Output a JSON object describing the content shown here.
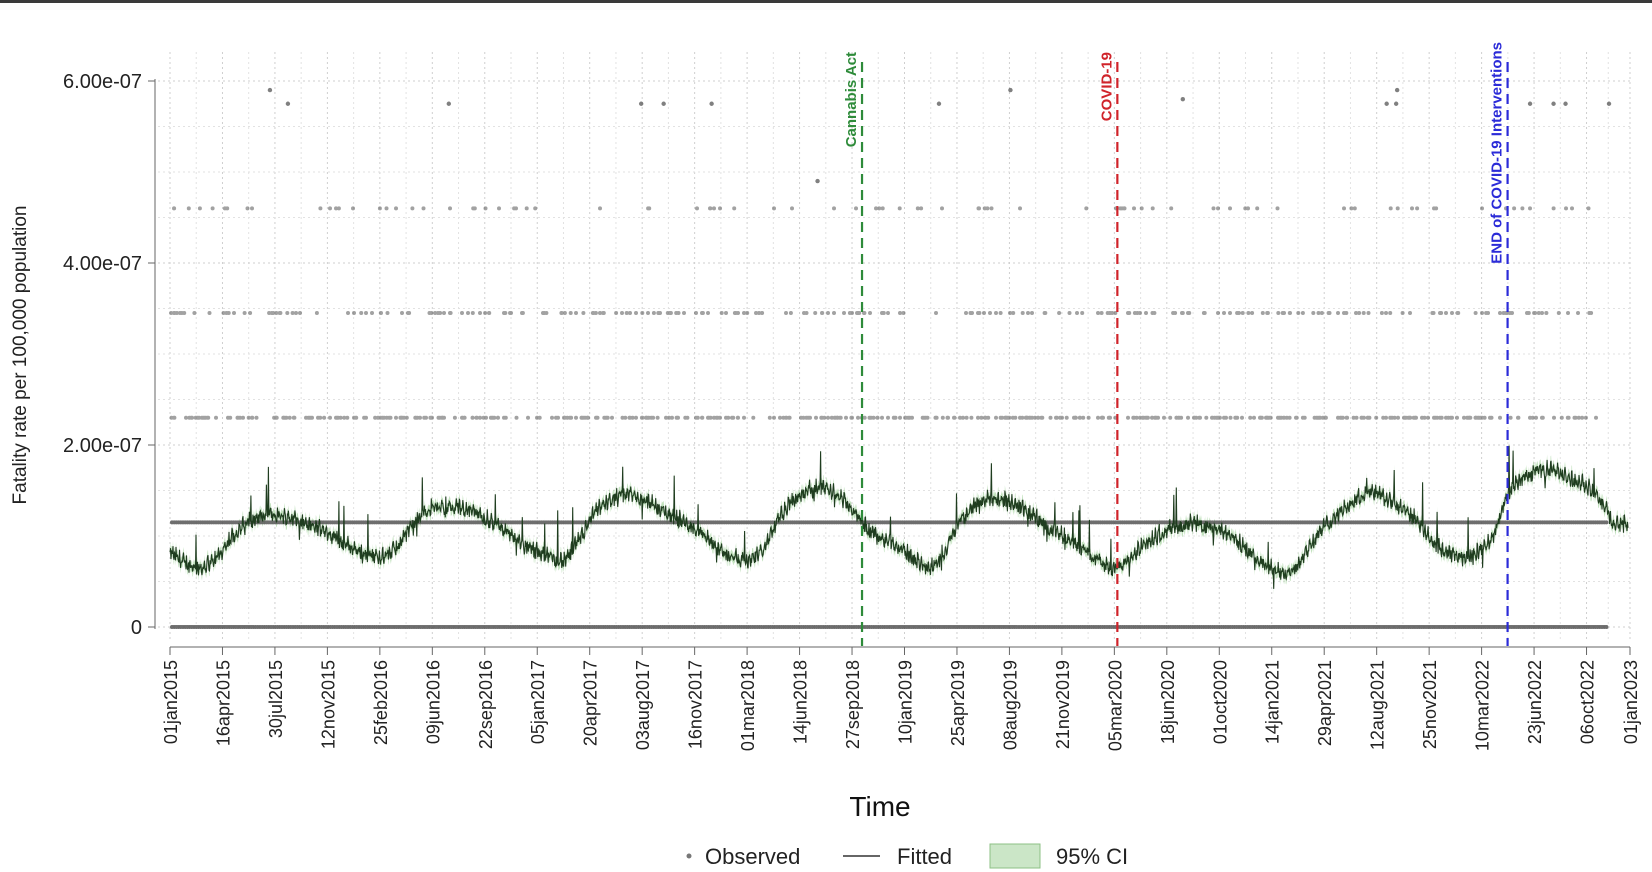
{
  "chart_data": {
    "type": "line",
    "title": "",
    "xlabel": "Time",
    "ylabel": "Fatality rate per 100,000 population",
    "xlim": [
      "2015-01-01",
      "2023-01-01"
    ],
    "ylim": [
      0,
      6e-07
    ],
    "y_ticks": [
      {
        "value": 0,
        "label": "0"
      },
      {
        "value": 2e-07,
        "label": "2.00e-07"
      },
      {
        "value": 4e-07,
        "label": "4.00e-07"
      },
      {
        "value": 6e-07,
        "label": "6.00e-07"
      }
    ],
    "x_ticks": [
      "01jan2015",
      "16apr2015",
      "30jul2015",
      "12nov2015",
      "25feb2016",
      "09jun2016",
      "22sep2016",
      "05jan2017",
      "20apr2017",
      "03aug2017",
      "16nov2017",
      "01mar2018",
      "14jun2018",
      "27sep2018",
      "10jan2019",
      "25apr2019",
      "08aug2019",
      "21nov2019",
      "05mar2020",
      "18jun2020",
      "01oct2020",
      "14jan2021",
      "29apr2021",
      "12aug2021",
      "25nov2021",
      "10mar2022",
      "23jun2022",
      "06oct2022",
      "01jan2023"
    ],
    "x_tick_dates": [
      "2015-01-01",
      "2015-04-16",
      "2015-07-30",
      "2015-11-12",
      "2016-02-25",
      "2016-06-09",
      "2016-09-22",
      "2017-01-05",
      "2017-04-20",
      "2017-08-03",
      "2017-11-16",
      "2018-03-01",
      "2018-06-14",
      "2018-09-27",
      "2019-01-10",
      "2019-04-25",
      "2019-08-08",
      "2019-11-21",
      "2020-03-05",
      "2020-06-18",
      "2020-10-01",
      "2021-01-14",
      "2021-04-29",
      "2021-08-12",
      "2021-11-25",
      "2022-03-10",
      "2022-06-23",
      "2022-10-06",
      "2023-01-01"
    ],
    "grid": true,
    "legend_position": "bottom",
    "legend": [
      {
        "key": "observed",
        "label": "Observed"
      },
      {
        "key": "fitted",
        "label": "Fitted"
      },
      {
        "key": "ci",
        "label": "95% CI"
      }
    ],
    "observed_levels": [
      0,
      1.15e-07,
      2.3e-07,
      3.45e-07,
      4.6e-07,
      5.75e-07
    ],
    "observed_outliers": [
      {
        "date": "2015-07-20",
        "y": 5.9e-07
      },
      {
        "date": "2015-08-25",
        "y": 5.75e-07
      },
      {
        "date": "2016-07-12",
        "y": 5.75e-07
      },
      {
        "date": "2017-08-01",
        "y": 5.75e-07
      },
      {
        "date": "2017-09-15",
        "y": 5.75e-07
      },
      {
        "date": "2017-12-20",
        "y": 5.75e-07
      },
      {
        "date": "2018-07-20",
        "y": 4.9e-07
      },
      {
        "date": "2019-03-20",
        "y": 5.75e-07
      },
      {
        "date": "2019-08-10",
        "y": 5.9e-07
      },
      {
        "date": "2020-07-20",
        "y": 5.8e-07
      },
      {
        "date": "2021-09-01",
        "y": 5.75e-07
      },
      {
        "date": "2021-09-20",
        "y": 5.75e-07
      },
      {
        "date": "2021-09-22",
        "y": 5.9e-07
      },
      {
        "date": "2022-06-15",
        "y": 5.75e-07
      },
      {
        "date": "2022-08-01",
        "y": 5.75e-07
      },
      {
        "date": "2022-08-25",
        "y": 5.75e-07
      },
      {
        "date": "2022-11-20",
        "y": 5.75e-07
      }
    ],
    "fitted_monthly": [
      {
        "date": "2015-01-01",
        "y": 8e-08
      },
      {
        "date": "2015-02-01",
        "y": 6.8e-08
      },
      {
        "date": "2015-03-01",
        "y": 6.2e-08
      },
      {
        "date": "2015-04-01",
        "y": 7.2e-08
      },
      {
        "date": "2015-05-01",
        "y": 9.5e-08
      },
      {
        "date": "2015-06-01",
        "y": 1.12e-07
      },
      {
        "date": "2015-07-01",
        "y": 1.2e-07
      },
      {
        "date": "2015-08-01",
        "y": 1.22e-07
      },
      {
        "date": "2015-09-01",
        "y": 1.18e-07
      },
      {
        "date": "2015-10-01",
        "y": 1.12e-07
      },
      {
        "date": "2015-11-01",
        "y": 1.05e-07
      },
      {
        "date": "2015-12-01",
        "y": 9.5e-08
      },
      {
        "date": "2016-01-01",
        "y": 8.5e-08
      },
      {
        "date": "2016-02-01",
        "y": 7.8e-08
      },
      {
        "date": "2016-03-01",
        "y": 7.5e-08
      },
      {
        "date": "2016-04-01",
        "y": 8.5e-08
      },
      {
        "date": "2016-05-01",
        "y": 1.12e-07
      },
      {
        "date": "2016-06-01",
        "y": 1.28e-07
      },
      {
        "date": "2016-07-01",
        "y": 1.32e-07
      },
      {
        "date": "2016-08-01",
        "y": 1.3e-07
      },
      {
        "date": "2016-09-01",
        "y": 1.25e-07
      },
      {
        "date": "2016-10-01",
        "y": 1.15e-07
      },
      {
        "date": "2016-11-01",
        "y": 1.05e-07
      },
      {
        "date": "2016-12-01",
        "y": 9.2e-08
      },
      {
        "date": "2017-01-01",
        "y": 8.2e-08
      },
      {
        "date": "2017-02-01",
        "y": 7.4e-08
      },
      {
        "date": "2017-03-01",
        "y": 7e-08
      },
      {
        "date": "2017-04-01",
        "y": 9.5e-08
      },
      {
        "date": "2017-05-01",
        "y": 1.25e-07
      },
      {
        "date": "2017-06-01",
        "y": 1.38e-07
      },
      {
        "date": "2017-07-01",
        "y": 1.45e-07
      },
      {
        "date": "2017-08-01",
        "y": 1.4e-07
      },
      {
        "date": "2017-09-01",
        "y": 1.3e-07
      },
      {
        "date": "2017-10-01",
        "y": 1.2e-07
      },
      {
        "date": "2017-11-01",
        "y": 1.12e-07
      },
      {
        "date": "2017-12-01",
        "y": 1e-07
      },
      {
        "date": "2018-01-01",
        "y": 8.5e-08
      },
      {
        "date": "2018-02-01",
        "y": 7.5e-08
      },
      {
        "date": "2018-03-01",
        "y": 7e-08
      },
      {
        "date": "2018-04-01",
        "y": 8.2e-08
      },
      {
        "date": "2018-05-01",
        "y": 1.15e-07
      },
      {
        "date": "2018-06-01",
        "y": 1.38e-07
      },
      {
        "date": "2018-07-01",
        "y": 1.5e-07
      },
      {
        "date": "2018-08-01",
        "y": 1.52e-07
      },
      {
        "date": "2018-09-01",
        "y": 1.42e-07
      },
      {
        "date": "2018-10-01",
        "y": 1.25e-07
      },
      {
        "date": "2018-11-01",
        "y": 1.05e-07
      },
      {
        "date": "2018-12-01",
        "y": 9.5e-08
      },
      {
        "date": "2019-01-01",
        "y": 8.5e-08
      },
      {
        "date": "2019-02-01",
        "y": 7.2e-08
      },
      {
        "date": "2019-03-01",
        "y": 6.2e-08
      },
      {
        "date": "2019-04-01",
        "y": 8.2e-08
      },
      {
        "date": "2019-05-01",
        "y": 1.15e-07
      },
      {
        "date": "2019-06-01",
        "y": 1.32e-07
      },
      {
        "date": "2019-07-01",
        "y": 1.4e-07
      },
      {
        "date": "2019-08-01",
        "y": 1.38e-07
      },
      {
        "date": "2019-09-01",
        "y": 1.3e-07
      },
      {
        "date": "2019-10-01",
        "y": 1.18e-07
      },
      {
        "date": "2019-11-01",
        "y": 1.05e-07
      },
      {
        "date": "2019-12-01",
        "y": 9.5e-08
      },
      {
        "date": "2020-01-01",
        "y": 8.5e-08
      },
      {
        "date": "2020-02-01",
        "y": 7.2e-08
      },
      {
        "date": "2020-03-01",
        "y": 6.2e-08
      },
      {
        "date": "2020-04-01",
        "y": 7e-08
      },
      {
        "date": "2020-05-01",
        "y": 8.8e-08
      },
      {
        "date": "2020-06-01",
        "y": 1e-07
      },
      {
        "date": "2020-07-01",
        "y": 1.08e-07
      },
      {
        "date": "2020-08-01",
        "y": 1.12e-07
      },
      {
        "date": "2020-09-01",
        "y": 1.1e-07
      },
      {
        "date": "2020-10-01",
        "y": 1.05e-07
      },
      {
        "date": "2020-11-01",
        "y": 9.5e-08
      },
      {
        "date": "2020-12-01",
        "y": 8e-08
      },
      {
        "date": "2021-01-01",
        "y": 6.6e-08
      },
      {
        "date": "2021-02-01",
        "y": 5.8e-08
      },
      {
        "date": "2021-03-01",
        "y": 6.2e-08
      },
      {
        "date": "2021-04-01",
        "y": 8.8e-08
      },
      {
        "date": "2021-05-01",
        "y": 1.1e-07
      },
      {
        "date": "2021-06-01",
        "y": 1.25e-07
      },
      {
        "date": "2021-07-01",
        "y": 1.38e-07
      },
      {
        "date": "2021-08-01",
        "y": 1.48e-07
      },
      {
        "date": "2021-09-01",
        "y": 1.38e-07
      },
      {
        "date": "2021-10-01",
        "y": 1.28e-07
      },
      {
        "date": "2021-11-01",
        "y": 1.15e-07
      },
      {
        "date": "2021-12-01",
        "y": 9.2e-08
      },
      {
        "date": "2022-01-01",
        "y": 7.8e-08
      },
      {
        "date": "2022-02-01",
        "y": 7.6e-08
      },
      {
        "date": "2022-03-01",
        "y": 8e-08
      },
      {
        "date": "2022-04-01",
        "y": 9.5e-08
      },
      {
        "date": "2022-05-01",
        "y": 1.45e-07
      },
      {
        "date": "2022-06-01",
        "y": 1.62e-07
      },
      {
        "date": "2022-07-01",
        "y": 1.7e-07
      },
      {
        "date": "2022-08-01",
        "y": 1.72e-07
      },
      {
        "date": "2022-09-01",
        "y": 1.62e-07
      },
      {
        "date": "2022-10-01",
        "y": 1.55e-07
      },
      {
        "date": "2022-11-01",
        "y": 1.4e-07
      },
      {
        "date": "2022-12-01",
        "y": 1.1e-07
      }
    ],
    "events": [
      {
        "label": "Cannabis Act",
        "date": "2018-10-17",
        "color": "#2e8b3a"
      },
      {
        "label": "COVID-19",
        "date": "2020-03-11",
        "color": "#d0232a"
      },
      {
        "label": "END of COVID-19 Interventions",
        "date": "2022-05-01",
        "color": "#2b2bd8"
      }
    ],
    "colors": {
      "observed": "#555555",
      "fitted": "#1f3d1f",
      "ci_fill": "#a8d5a2",
      "grid": "#cfcfcf",
      "axis": "#666666"
    }
  }
}
